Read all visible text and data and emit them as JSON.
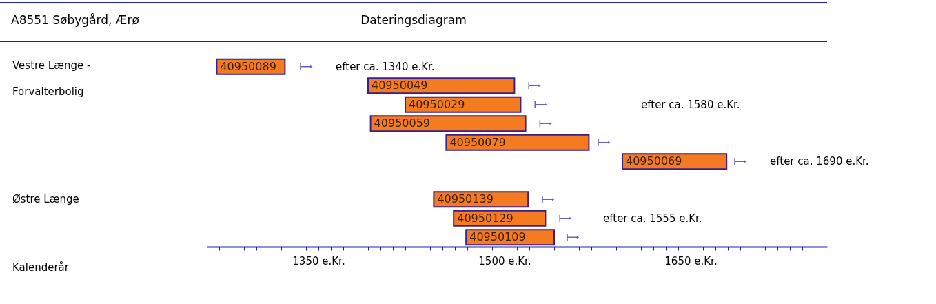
{
  "chart_data": {
    "type": "bar",
    "orientation": "horizontal",
    "title": "Dateringsdiagram",
    "subtitle": "A8551 Søbygård, Ærø",
    "categories": [
      "40950089",
      "40950049",
      "40950029",
      "40950059",
      "40950079",
      "40950069",
      null,
      "40950139",
      "40950129",
      "40950109"
    ],
    "series": [
      {
        "color": "#f47b20",
        "base": [
          1268,
          1390,
          1420,
          1392,
          1453,
          1595,
          null,
          1443,
          1459,
          1469
        ],
        "values": [
          55,
          118,
          93,
          125,
          115,
          84,
          null,
          76,
          74,
          71
        ]
      },
      {
        "type": "scatter",
        "color": "#2020b8",
        "values": [
          1340,
          1524,
          1529,
          1533,
          1580,
          1690,
          null,
          1535,
          1549,
          1555
        ]
      }
    ],
    "xlim": [
      1260,
      1760
    ],
    "xticks": [
      {
        "value": 1270,
        "label": null
      },
      {
        "value": 1280,
        "label": null
      },
      {
        "value": 1290,
        "label": null
      },
      {
        "value": 1300,
        "label": null
      },
      {
        "value": 1310,
        "label": null
      },
      {
        "value": 1320,
        "label": null
      },
      {
        "value": 1330,
        "label": null
      },
      {
        "value": 1340,
        "label": null
      },
      {
        "value": 1350,
        "label": "1350 e.Kr."
      },
      {
        "value": 1360,
        "label": null
      },
      {
        "value": 1370,
        "label": null
      },
      {
        "value": 1380,
        "label": null
      },
      {
        "value": 1390,
        "label": null
      },
      {
        "value": 1400,
        "label": null
      },
      {
        "value": 1410,
        "label": null
      },
      {
        "value": 1420,
        "label": null
      },
      {
        "value": 1430,
        "label": null
      },
      {
        "value": 1440,
        "label": null
      },
      {
        "value": 1450,
        "label": null
      },
      {
        "value": 1460,
        "label": null
      },
      {
        "value": 1470,
        "label": null
      },
      {
        "value": 1480,
        "label": null
      },
      {
        "value": 1490,
        "label": null
      },
      {
        "value": 1500,
        "label": "1500 e.Kr."
      },
      {
        "value": 1510,
        "label": null
      },
      {
        "value": 1520,
        "label": null
      },
      {
        "value": 1530,
        "label": null
      },
      {
        "value": 1540,
        "label": null
      },
      {
        "value": 1550,
        "label": null
      },
      {
        "value": 1560,
        "label": null
      },
      {
        "value": 1570,
        "label": null
      },
      {
        "value": 1580,
        "label": null
      },
      {
        "value": 1590,
        "label": null
      },
      {
        "value": 1600,
        "label": null
      },
      {
        "value": 1610,
        "label": null
      },
      {
        "value": 1620,
        "label": null
      },
      {
        "value": 1630,
        "label": null
      },
      {
        "value": 1640,
        "label": null
      },
      {
        "value": 1650,
        "label": "1650 e.Kr."
      },
      {
        "value": 1660,
        "label": null
      },
      {
        "value": 1670,
        "label": null
      },
      {
        "value": 1680,
        "label": null
      },
      {
        "value": 1690,
        "label": null
      },
      {
        "value": 1700,
        "label": null
      },
      {
        "value": 1710,
        "label": null
      },
      {
        "value": 1720,
        "label": null
      },
      {
        "value": 1730,
        "label": null
      },
      {
        "value": 1740,
        "label": null
      },
      {
        "value": 1750,
        "label": null
      }
    ],
    "annotations": [
      {
        "text": "efter ca. 1340 e.Kr.",
        "x": 1340,
        "y": "40950089"
      },
      {
        "text": "efter ca. 1690 e.Kr.",
        "x": 1690,
        "y": "40950069"
      },
      "efter ca. 1555 e.Kr.",
      "efter ca. 1580 e.Kr.",
      "Vestre Længe - Forvalterbolig",
      "Østre Længe",
      "Kalenderår"
    ]
  }
}
